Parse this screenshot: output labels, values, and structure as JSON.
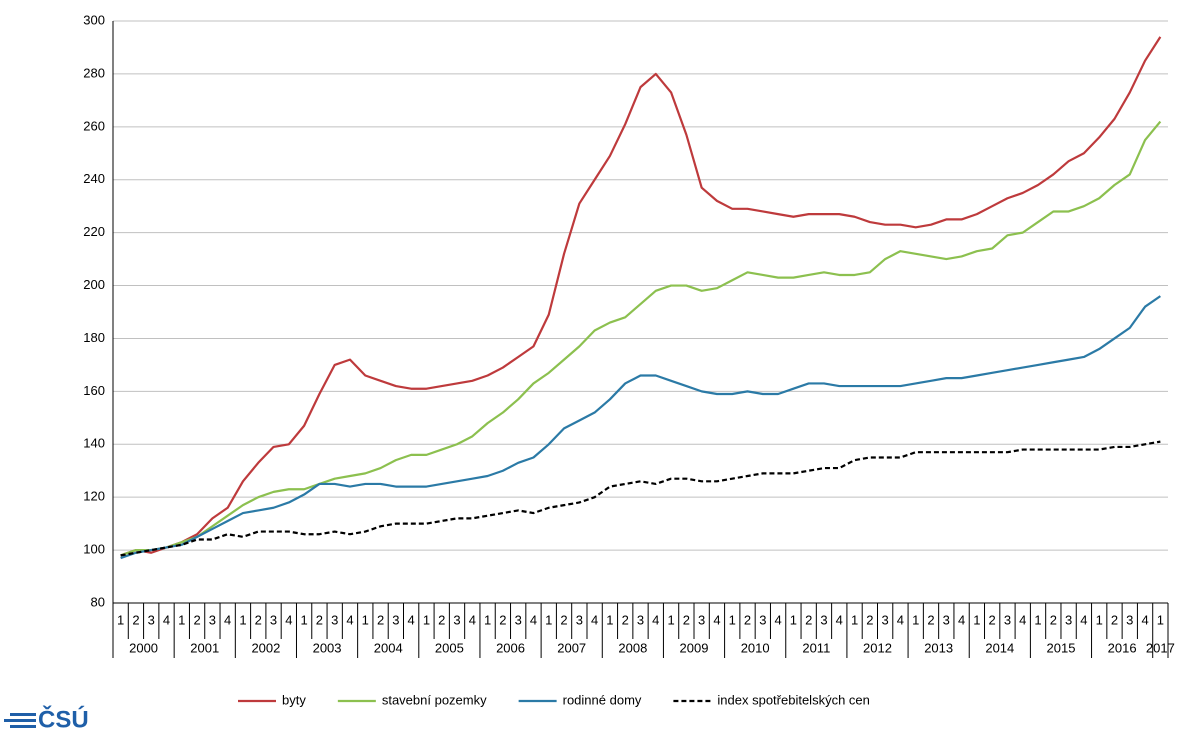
{
  "chart_data": {
    "type": "line",
    "categories": [
      "1",
      "2",
      "3",
      "4",
      "1",
      "2",
      "3",
      "4",
      "1",
      "2",
      "3",
      "4",
      "1",
      "2",
      "3",
      "4",
      "1",
      "2",
      "3",
      "4",
      "1",
      "2",
      "3",
      "4",
      "1",
      "2",
      "3",
      "4",
      "1",
      "2",
      "3",
      "4",
      "1",
      "2",
      "3",
      "4",
      "1",
      "2",
      "3",
      "4",
      "1",
      "2",
      "3",
      "4",
      "1",
      "2",
      "3",
      "4",
      "1",
      "2",
      "3",
      "4",
      "1",
      "2",
      "3",
      "4",
      "1",
      "2",
      "3",
      "4",
      "1",
      "2",
      "3",
      "4",
      "1",
      "2",
      "3",
      "4",
      "1"
    ],
    "years": [
      "2000",
      "2001",
      "2002",
      "2003",
      "2004",
      "2005",
      "2006",
      "2007",
      "2008",
      "2009",
      "2010",
      "2011",
      "2012",
      "2013",
      "2014",
      "2015",
      "2016",
      "2017"
    ],
    "ylim": [
      80,
      300
    ],
    "yticks": [
      80,
      100,
      120,
      140,
      160,
      180,
      200,
      220,
      240,
      260,
      280,
      300
    ],
    "grid": true,
    "series": [
      {
        "name": "byty",
        "color": "#be3a3c",
        "values": [
          98,
          100,
          99,
          101,
          103,
          106,
          112,
          116,
          126,
          133,
          139,
          140,
          147,
          159,
          170,
          172,
          166,
          164,
          162,
          161,
          161,
          162,
          163,
          164,
          166,
          169,
          173,
          177,
          189,
          212,
          231,
          240,
          249,
          261,
          275,
          280,
          273,
          257,
          237,
          232,
          229,
          229,
          228,
          227,
          226,
          227,
          227,
          227,
          226,
          224,
          223,
          223,
          222,
          223,
          225,
          225,
          227,
          230,
          233,
          235,
          238,
          242,
          247,
          250,
          256,
          263,
          273,
          285,
          294
        ]
      },
      {
        "name": "stavební pozemky",
        "color": "#8cc04f",
        "values": [
          98,
          100,
          100,
          101,
          103,
          105,
          109,
          113,
          117,
          120,
          122,
          123,
          123,
          125,
          127,
          128,
          129,
          131,
          134,
          136,
          136,
          138,
          140,
          143,
          148,
          152,
          157,
          163,
          167,
          172,
          177,
          183,
          186,
          188,
          193,
          198,
          200,
          200,
          198,
          199,
          202,
          205,
          204,
          203,
          203,
          204,
          205,
          204,
          204,
          205,
          210,
          213,
          212,
          211,
          210,
          211,
          213,
          214,
          219,
          220,
          224,
          228,
          228,
          230,
          233,
          238,
          242,
          255,
          262
        ]
      },
      {
        "name": "rodinné domy",
        "color": "#2b7aa6",
        "values": [
          97,
          99,
          100,
          101,
          102,
          105,
          108,
          111,
          114,
          115,
          116,
          118,
          121,
          125,
          125,
          124,
          125,
          125,
          124,
          124,
          124,
          125,
          126,
          127,
          128,
          130,
          133,
          135,
          140,
          146,
          149,
          152,
          157,
          163,
          166,
          166,
          164,
          162,
          160,
          159,
          159,
          160,
          159,
          159,
          161,
          163,
          163,
          162,
          162,
          162,
          162,
          162,
          163,
          164,
          165,
          165,
          166,
          167,
          168,
          169,
          170,
          171,
          172,
          173,
          176,
          180,
          184,
          192,
          196
        ]
      },
      {
        "name": "index spotřebitelských cen",
        "color": "#000000",
        "dash": true,
        "values": [
          98,
          99,
          100,
          101,
          102,
          104,
          104,
          106,
          105,
          107,
          107,
          107,
          106,
          106,
          107,
          106,
          107,
          109,
          110,
          110,
          110,
          111,
          112,
          112,
          113,
          114,
          115,
          114,
          116,
          117,
          118,
          120,
          124,
          125,
          126,
          125,
          127,
          127,
          126,
          126,
          127,
          128,
          129,
          129,
          129,
          130,
          131,
          131,
          134,
          135,
          135,
          135,
          137,
          137,
          137,
          137,
          137,
          137,
          137,
          138,
          138,
          138,
          138,
          138,
          138,
          139,
          139,
          140,
          141
        ]
      }
    ],
    "logo": "ČSÚ"
  }
}
